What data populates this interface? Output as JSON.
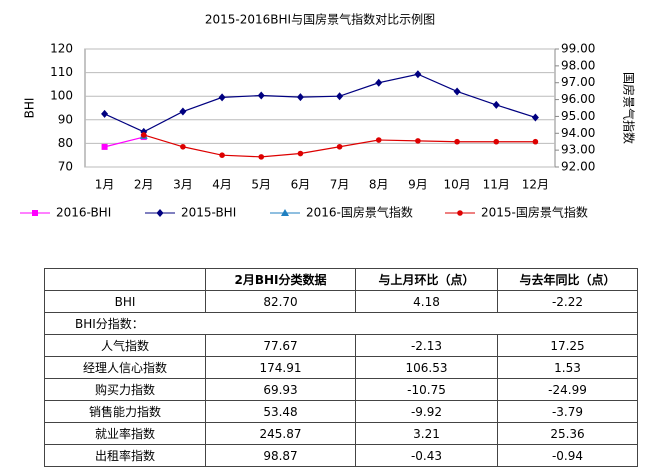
{
  "chart_data": {
    "type": "line",
    "title": "2015-2016BHI与国房景气指数对比示例图",
    "ylabel": "BHI",
    "y2label": "国房景气指数",
    "categories": [
      "1月",
      "2月",
      "3月",
      "4月",
      "5月",
      "6月",
      "7月",
      "8月",
      "9月",
      "10月",
      "11月",
      "12月"
    ],
    "ylim": [
      70,
      120
    ],
    "yticks": [
      70,
      80,
      90,
      100,
      110,
      120
    ],
    "y2lim": [
      92,
      99
    ],
    "y2ticks": [
      {
        "value": 92,
        "label": "92.00"
      },
      {
        "value": 93,
        "label": "93.00"
      },
      {
        "value": 94,
        "label": "94.00"
      },
      {
        "value": 95,
        "label": "95.00"
      },
      {
        "value": 96,
        "label": "96.00"
      },
      {
        "value": 97,
        "label": "97.00"
      },
      {
        "value": 98,
        "label": "98.00"
      },
      {
        "value": 99,
        "label": "99.00"
      }
    ],
    "grid": true,
    "legend": "bottom",
    "series": [
      {
        "name": "2016-BHI",
        "color": "#ff00ff",
        "marker": "square",
        "values": [
          78.52,
          82.7,
          null,
          null,
          null,
          null,
          null,
          null,
          null,
          null,
          null,
          null
        ]
      },
      {
        "name": "2015-BHI",
        "color": "#000080",
        "marker": "diamond",
        "values": [
          92.5,
          84.9,
          93.5,
          99.5,
          100.3,
          99.6,
          100,
          105.7,
          109.3,
          102,
          96.3,
          91
        ]
      },
      {
        "name": "2016-国房景气指数",
        "color": "#1f7fc0",
        "marker": "triangle",
        "axis": "y2",
        "values": [
          null,
          93.85,
          null,
          null,
          null,
          null,
          null,
          null,
          null,
          null,
          null,
          null
        ]
      },
      {
        "name": "2015-国房景气指数",
        "color": "#dd0000",
        "marker": "circle",
        "axis": "y2",
        "values": [
          null,
          93.9,
          93.2,
          92.7,
          92.6,
          92.8,
          93.2,
          93.6,
          93.55,
          93.5,
          93.5,
          93.5
        ]
      }
    ]
  },
  "table": {
    "header": [
      "2月BHI分类数据",
      "与上月环比（点）",
      "与去年同比（点）"
    ],
    "rows": [
      [
        "BHI",
        "82.70",
        "4.18",
        "-2.22"
      ],
      [
        "BHI分指数："
      ],
      [
        "人气指数",
        "77.67",
        "-2.13",
        "17.25"
      ],
      [
        "经理人信心指数",
        "174.91",
        "106.53",
        "1.53"
      ],
      [
        "购买力指数",
        "69.93",
        "-10.75",
        "-24.99"
      ],
      [
        "销售能力指数",
        "53.48",
        "-9.92",
        "-3.79"
      ],
      [
        "就业率指数",
        "245.87",
        "3.21",
        "25.36"
      ],
      [
        "出租率指数",
        "98.87",
        "-0.43",
        "-0.94"
      ]
    ]
  }
}
